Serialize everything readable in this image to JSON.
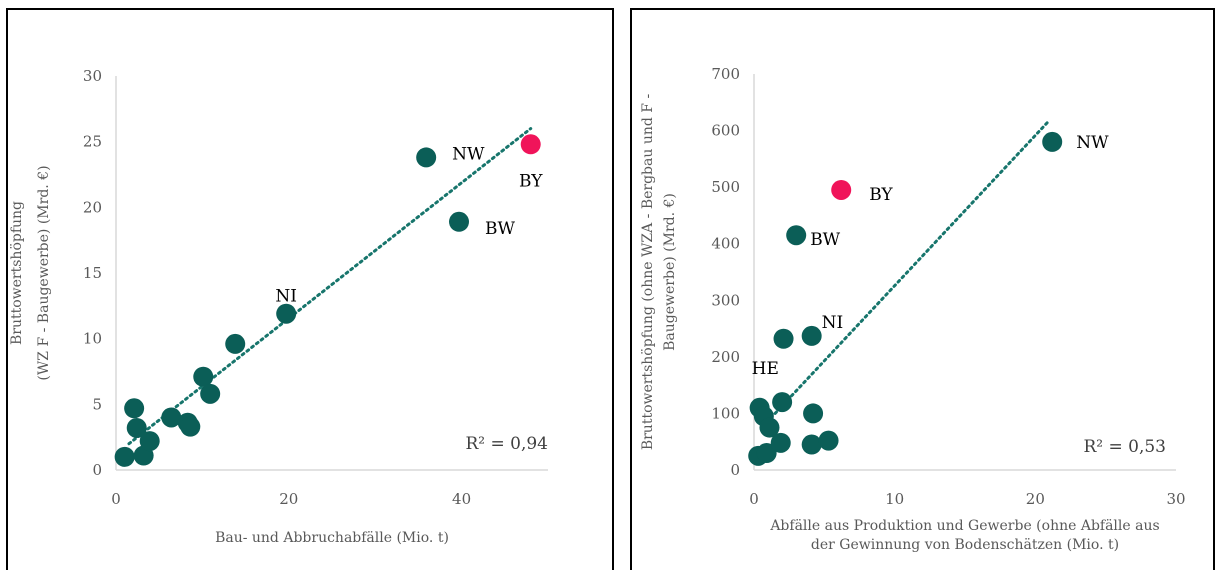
{
  "chart_data": [
    {
      "type": "scatter",
      "xlabel": "Bau- und Abbruchabfälle (Mio. t)",
      "ylabel": [
        "Bruttowertshöpfung",
        "(WZ F - Baugewerbe) (Mrd. €)"
      ],
      "xlim": [
        0,
        50
      ],
      "ylim": [
        0,
        30
      ],
      "xticks": [
        "0",
        "20",
        "40"
      ],
      "yticks": [
        "0",
        "5",
        "10",
        "15",
        "20",
        "25",
        "30"
      ],
      "grid": false,
      "annotation": "R² = 0,94",
      "colors": {
        "points": "#0b5e57",
        "highlight": "#f0145a",
        "trend": "#17756c",
        "axis": "#d9d9d9"
      },
      "points": [
        {
          "x": 1,
          "y": 1.0,
          "label": ""
        },
        {
          "x": 2.1,
          "y": 4.7,
          "label": ""
        },
        {
          "x": 2.4,
          "y": 3.2,
          "label": ""
        },
        {
          "x": 3.2,
          "y": 1.1,
          "label": ""
        },
        {
          "x": 3.9,
          "y": 2.2,
          "label": ""
        },
        {
          "x": 6.4,
          "y": 4.0,
          "label": ""
        },
        {
          "x": 8.3,
          "y": 3.6,
          "label": ""
        },
        {
          "x": 8.6,
          "y": 3.3,
          "label": ""
        },
        {
          "x": 10.1,
          "y": 7.1,
          "label": ""
        },
        {
          "x": 10.9,
          "y": 5.8,
          "label": ""
        },
        {
          "x": 13.8,
          "y": 9.6,
          "label": ""
        },
        {
          "x": 19.7,
          "y": 11.9,
          "label": "NI"
        },
        {
          "x": 35.9,
          "y": 23.8,
          "label": "NW"
        },
        {
          "x": 39.7,
          "y": 18.9,
          "label": "BW"
        },
        {
          "x": 48.0,
          "y": 24.8,
          "label": "BY",
          "highlight": true
        }
      ],
      "trendline": {
        "x": [
          1.5,
          48
        ],
        "y": [
          2.0,
          26.0
        ]
      }
    },
    {
      "type": "scatter",
      "xlabel": [
        "Abfälle aus Produktion und Gewerbe (ohne Abfälle aus",
        "der Gewinnung von Bodenschätzen (Mio. t)"
      ],
      "ylabel": [
        "Bruttowertshöpfung (ohne WZA - Bergbau und F -",
        "Baugewerbe) (Mrd. €)"
      ],
      "xlim": [
        0,
        30
      ],
      "ylim": [
        0,
        700
      ],
      "xticks": [
        "0",
        "10",
        "20",
        "30"
      ],
      "yticks": [
        "0",
        "100",
        "200",
        "300",
        "400",
        "500",
        "600",
        "700"
      ],
      "grid": false,
      "annotation": "R² = 0,53",
      "colors": {
        "points": "#0b5e57",
        "highlight": "#f0145a",
        "trend": "#17756c",
        "axis": "#d9d9d9"
      },
      "points": [
        {
          "x": 0.3,
          "y": 25,
          "label": ""
        },
        {
          "x": 0.4,
          "y": 110,
          "label": "HE"
        },
        {
          "x": 0.7,
          "y": 95,
          "label": ""
        },
        {
          "x": 0.9,
          "y": 30,
          "label": ""
        },
        {
          "x": 1.1,
          "y": 75,
          "label": ""
        },
        {
          "x": 1.9,
          "y": 48,
          "label": ""
        },
        {
          "x": 2.0,
          "y": 120,
          "label": ""
        },
        {
          "x": 2.1,
          "y": 232,
          "label": ""
        },
        {
          "x": 3.0,
          "y": 415,
          "label": "BW"
        },
        {
          "x": 4.1,
          "y": 45,
          "label": ""
        },
        {
          "x": 4.2,
          "y": 100,
          "label": ""
        },
        {
          "x": 4.1,
          "y": 237,
          "label": "NI"
        },
        {
          "x": 5.3,
          "y": 52,
          "label": ""
        },
        {
          "x": 6.2,
          "y": 495,
          "label": "BY",
          "highlight": true
        },
        {
          "x": 21.2,
          "y": 580,
          "label": "NW"
        }
      ],
      "trendline": {
        "x": [
          1.5,
          21
        ],
        "y": [
          100,
          618
        ]
      }
    }
  ]
}
